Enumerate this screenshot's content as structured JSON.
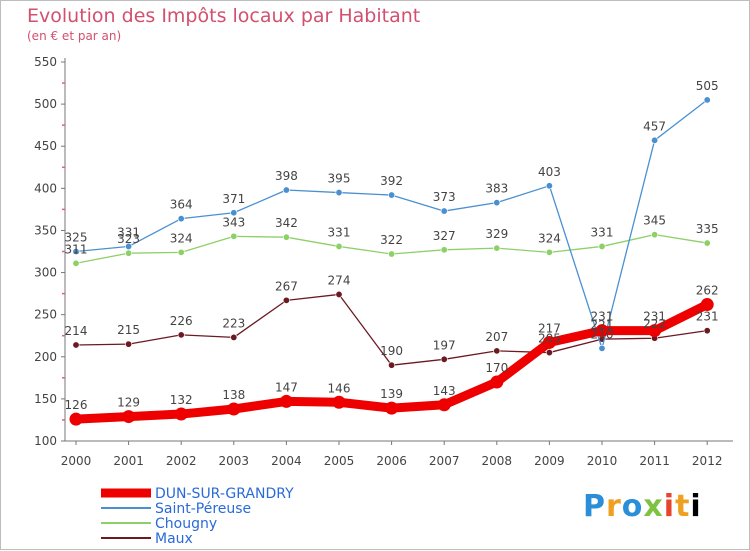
{
  "title": "Evolution des Impôts locaux par Habitant",
  "subtitle": "(en € et par an)",
  "logo": [
    "P",
    "r",
    "o",
    "x",
    "i",
    "t",
    "i"
  ],
  "chart_data": {
    "type": "line",
    "title": "Evolution des Impôts locaux par Habitant",
    "subtitle": "(en € et par an)",
    "xlabel": "",
    "ylabel": "",
    "x": [
      "2000",
      "2001",
      "2002",
      "2003",
      "2004",
      "2005",
      "2006",
      "2007",
      "2008",
      "2009",
      "2010",
      "2011",
      "2012"
    ],
    "ylim": [
      100,
      550
    ],
    "yticks": [
      100,
      150,
      200,
      250,
      300,
      350,
      400,
      450,
      500,
      550
    ],
    "grid": false,
    "legend": "bottom-left",
    "series": [
      {
        "name": "DUN-SUR-GRANDRY",
        "color": "#ee0000",
        "values": [
          126,
          129,
          132,
          138,
          147,
          146,
          139,
          143,
          170,
          217,
          231,
          231,
          262
        ]
      },
      {
        "name": "Saint-Péreuse",
        "color": "#4a90d0",
        "values": [
          325,
          331,
          364,
          371,
          398,
          395,
          392,
          373,
          383,
          403,
          210,
          457,
          505
        ]
      },
      {
        "name": "Chougny",
        "color": "#8ed068",
        "values": [
          311,
          323,
          324,
          343,
          342,
          331,
          322,
          327,
          329,
          324,
          331,
          345,
          335
        ]
      },
      {
        "name": "Maux",
        "color": "#6b1a22",
        "values": [
          214,
          215,
          226,
          223,
          267,
          274,
          190,
          197,
          207,
          205,
          221,
          222,
          231
        ]
      }
    ],
    "data_labels": [
      [
        126,
        129,
        132,
        138,
        147,
        146,
        139,
        143,
        170,
        217,
        231,
        231,
        262
      ],
      [
        325,
        331,
        364,
        371,
        398,
        395,
        392,
        373,
        383,
        403,
        210,
        457,
        505
      ],
      [
        311,
        323,
        324,
        343,
        342,
        331,
        322,
        327,
        329,
        324,
        331,
        345,
        335
      ],
      [
        214,
        215,
        226,
        223,
        267,
        274,
        190,
        197,
        207,
        205,
        221,
        222,
        231
      ]
    ]
  }
}
